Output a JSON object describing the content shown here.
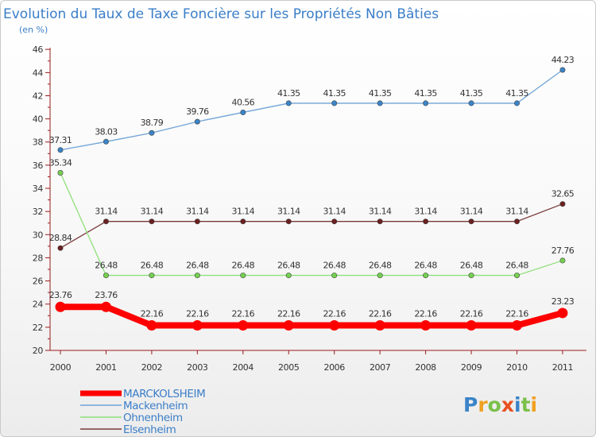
{
  "chart_data": {
    "type": "line",
    "title": "Evolution du Taux de Taxe Foncière sur les Propriétés Non Bâties",
    "subtitle": "(en %)",
    "xlabel": "",
    "ylabel": "",
    "categories": [
      "2000",
      "2001",
      "2002",
      "2003",
      "2004",
      "2005",
      "2006",
      "2007",
      "2008",
      "2009",
      "2010",
      "2011"
    ],
    "ylim": [
      20,
      46
    ],
    "yticks": [
      20,
      22,
      24,
      26,
      28,
      30,
      32,
      34,
      36,
      38,
      40,
      42,
      44,
      46
    ],
    "grid": false,
    "legend_position": "bottom-left",
    "series": [
      {
        "name": "MARCKOLSHEIM",
        "color": "#ff0000",
        "emphasis": true,
        "values": [
          23.76,
          23.76,
          22.16,
          22.16,
          22.16,
          22.16,
          22.16,
          22.16,
          22.16,
          22.16,
          22.16,
          23.23
        ],
        "labels": [
          "23.76",
          "23.76",
          "22.16",
          "22.16",
          "22.16",
          "22.16",
          "22.16",
          "22.16",
          "22.16",
          "22.16",
          "22.16",
          "23.23"
        ]
      },
      {
        "name": "Mackenheim",
        "color": "#6fa3d6",
        "marker": "#3a84c8",
        "values": [
          37.31,
          38.03,
          38.79,
          39.76,
          40.56,
          41.35,
          41.35,
          41.35,
          41.35,
          41.35,
          41.35,
          44.23
        ],
        "labels": [
          "37.31",
          "38.03",
          "38.79",
          "39.76",
          "40.56",
          "41.35",
          "41.35",
          "41.35",
          "41.35",
          "41.35",
          "41.35",
          "44.23"
        ]
      },
      {
        "name": "Ohnenheim",
        "color": "#8fe07a",
        "marker": "#76d04f",
        "values": [
          35.34,
          26.48,
          26.48,
          26.48,
          26.48,
          26.48,
          26.48,
          26.48,
          26.48,
          26.48,
          26.48,
          27.76
        ],
        "labels": [
          "35.34",
          "26.48",
          "26.48",
          "26.48",
          "26.48",
          "26.48",
          "26.48",
          "26.48",
          "26.48",
          "26.48",
          "26.48",
          "27.76"
        ]
      },
      {
        "name": "Elsenheim",
        "color": "#7a3a3a",
        "marker": "#6a2020",
        "values": [
          28.84,
          31.14,
          31.14,
          31.14,
          31.14,
          31.14,
          31.14,
          31.14,
          31.14,
          31.14,
          31.14,
          32.65
        ],
        "labels": [
          "28.84",
          "31.14",
          "31.14",
          "31.14",
          "31.14",
          "31.14",
          "31.14",
          "31.14",
          "31.14",
          "31.14",
          "31.14",
          "32.65"
        ]
      }
    ]
  },
  "logo": {
    "text": "Proxiti",
    "letters": [
      {
        "ch": "P",
        "color": "#3a84c8"
      },
      {
        "ch": "r",
        "color": "#f0a020"
      },
      {
        "ch": "o",
        "color": "#7ac04a"
      },
      {
        "ch": "x",
        "color": "#e8501e"
      },
      {
        "ch": "i",
        "color": "#3a84c8"
      },
      {
        "ch": "t",
        "color": "#7ac04a"
      },
      {
        "ch": "i",
        "color": "#f0a020"
      }
    ]
  }
}
